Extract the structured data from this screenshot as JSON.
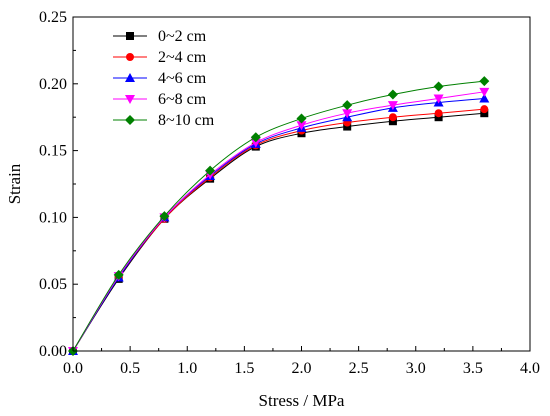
{
  "chart_data": {
    "type": "line",
    "title": "",
    "xlabel": "Stress / MPa",
    "ylabel": "Strain",
    "xlim": [
      0.0,
      4.0
    ],
    "ylim": [
      0.0,
      0.25
    ],
    "xticks": [
      "0.0",
      "0.5",
      "1.0",
      "1.5",
      "2.0",
      "2.5",
      "3.0",
      "3.5",
      "4.0"
    ],
    "yticks": [
      "0.00",
      "0.05",
      "0.10",
      "0.15",
      "0.20",
      "0.25"
    ],
    "x": [
      0.0,
      0.4,
      0.8,
      1.2,
      1.6,
      2.0,
      2.4,
      2.8,
      3.2,
      3.6
    ],
    "grid": false,
    "legend_position": "top-left",
    "series": [
      {
        "name": "0~2 cm",
        "color": "#000000",
        "marker": "square",
        "values": [
          0.0,
          0.054,
          0.099,
          0.129,
          0.153,
          0.163,
          0.168,
          0.172,
          0.175,
          0.178
        ]
      },
      {
        "name": "2~4 cm",
        "color": "#ff0000",
        "marker": "circle",
        "values": [
          0.0,
          0.055,
          0.099,
          0.13,
          0.154,
          0.165,
          0.171,
          0.175,
          0.178,
          0.181
        ]
      },
      {
        "name": "4~6 cm",
        "color": "#0000ff",
        "marker": "triangle-up",
        "values": [
          0.0,
          0.055,
          0.1,
          0.131,
          0.155,
          0.167,
          0.175,
          0.182,
          0.186,
          0.189
        ]
      },
      {
        "name": "6~8 cm",
        "color": "#ff00ff",
        "marker": "triangle-down",
        "values": [
          0.0,
          0.056,
          0.1,
          0.132,
          0.156,
          0.169,
          0.178,
          0.184,
          0.189,
          0.194
        ]
      },
      {
        "name": "8~10 cm",
        "color": "#008000",
        "marker": "diamond",
        "values": [
          0.0,
          0.057,
          0.101,
          0.135,
          0.16,
          0.174,
          0.184,
          0.192,
          0.198,
          0.202
        ]
      }
    ]
  }
}
